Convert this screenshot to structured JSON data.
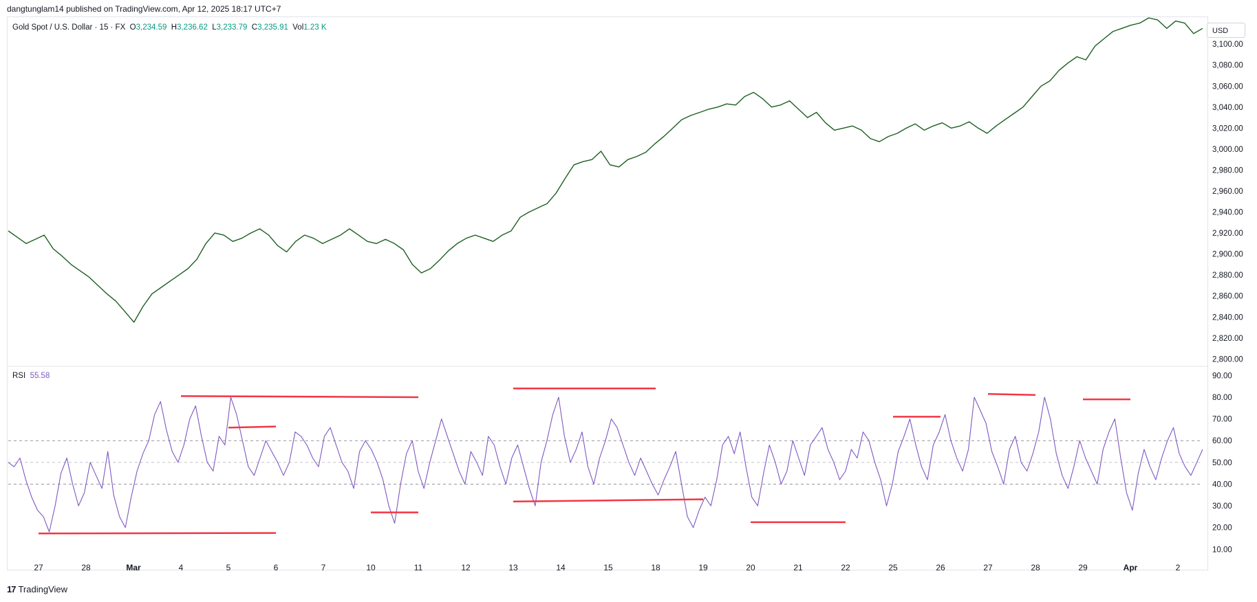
{
  "header": {
    "published": "dangtunglam14 published on TradingView.com, Apr 12, 2025 18:17 UTC+7"
  },
  "legend": {
    "symbol": "Gold Spot / U.S. Dollar · 15 · FX",
    "o_label": "O",
    "o_value": "3,234.59",
    "h_label": "H",
    "h_value": "3,236.62",
    "l_label": "L",
    "l_value": "3,233.79",
    "c_label": "C",
    "c_value": "3,235.91",
    "vol_label": "Vol",
    "vol_value": "1.23 K"
  },
  "currency": "USD",
  "rsi_legend": {
    "label": "RSI",
    "value": "55.58"
  },
  "footer": {
    "brand": "TradingView",
    "logo_glyph": "17"
  },
  "colors": {
    "price_up": "#089981",
    "price_line": "#1b5e20",
    "rsi_line": "#7e57c2",
    "annotation": "#f23645",
    "grid_dash": "#787b86"
  },
  "chart_data": [
    {
      "type": "line",
      "title": "Gold Spot / U.S. Dollar · 15 · FX",
      "y_ticks": [
        2800,
        2820,
        2840,
        2860,
        2880,
        2900,
        2920,
        2940,
        2960,
        2980,
        3000,
        3020,
        3040,
        3060,
        3080,
        3100
      ],
      "y_tick_labels": [
        "2,800.00",
        "2,820.00",
        "2,840.00",
        "2,860.00",
        "2,880.00",
        "2,900.00",
        "2,920.00",
        "2,940.00",
        "2,960.00",
        "2,980.00",
        "3,000.00",
        "3,020.00",
        "3,040.00",
        "3,060.00",
        "3,080.00",
        "3,100.00"
      ],
      "ylim": [
        2795,
        3125
      ],
      "x_tick_labels": [
        "27",
        "28",
        "Mar",
        "4",
        "5",
        "6",
        "7",
        "10",
        "11",
        "12",
        "13",
        "14",
        "15",
        "18",
        "19",
        "20",
        "21",
        "22",
        "25",
        "26",
        "27",
        "28",
        "29",
        "Apr",
        "2"
      ],
      "series": [
        {
          "values": [
            2922,
            2916,
            2910,
            2914,
            2918,
            2905,
            2898,
            2890,
            2884,
            2878,
            2870,
            2862,
            2855,
            2845,
            2835,
            2850,
            2862,
            2868,
            2874,
            2880,
            2886,
            2895,
            2910,
            2920,
            2918,
            2912,
            2915,
            2920,
            2924,
            2918,
            2908,
            2902,
            2912,
            2918,
            2915,
            2910,
            2914,
            2918,
            2924,
            2918,
            2912,
            2910,
            2914,
            2910,
            2904,
            2890,
            2882,
            2886,
            2894,
            2903,
            2910,
            2915,
            2918,
            2915,
            2912,
            2918,
            2922,
            2935,
            2940,
            2944,
            2948,
            2958,
            2972,
            2985,
            2988,
            2990,
            2998,
            2985,
            2983,
            2990,
            2993,
            2997,
            3005,
            3012,
            3020,
            3028,
            3032,
            3035,
            3038,
            3040,
            3043,
            3042,
            3050,
            3054,
            3048,
            3040,
            3042,
            3046,
            3038,
            3030,
            3035,
            3025,
            3018,
            3020,
            3022,
            3018,
            3010,
            3007,
            3012,
            3015,
            3020,
            3024,
            3018,
            3022,
            3025,
            3020,
            3022,
            3026,
            3020,
            3015,
            3022,
            3028,
            3034,
            3040,
            3050,
            3060,
            3065,
            3075,
            3082,
            3088,
            3085,
            3098,
            3105,
            3112,
            3115,
            3118,
            3120,
            3125,
            3123,
            3115,
            3122,
            3120,
            3110,
            3115
          ]
        }
      ]
    },
    {
      "type": "line",
      "title": "RSI",
      "y_ticks": [
        10,
        20,
        30,
        40,
        50,
        60,
        70,
        80,
        90
      ],
      "y_tick_labels": [
        "10.00",
        "20.00",
        "30.00",
        "40.00",
        "50.00",
        "60.00",
        "70.00",
        "80.00",
        "90.00"
      ],
      "ylim": [
        6,
        92
      ],
      "bands": [
        40,
        50,
        60
      ],
      "series": [
        {
          "name": "RSI",
          "values": [
            50,
            48,
            52,
            42,
            34,
            28,
            25,
            18,
            30,
            45,
            52,
            40,
            30,
            36,
            50,
            44,
            38,
            55,
            35,
            25,
            20,
            34,
            46,
            54,
            60,
            72,
            78,
            65,
            55,
            50,
            58,
            70,
            76,
            62,
            50,
            46,
            62,
            58,
            80,
            72,
            60,
            48,
            44,
            52,
            60,
            55,
            50,
            44,
            50,
            64,
            62,
            58,
            52,
            48,
            62,
            66,
            58,
            50,
            46,
            38,
            55,
            60,
            56,
            50,
            42,
            30,
            22,
            40,
            54,
            60,
            46,
            38,
            50,
            60,
            70,
            62,
            54,
            46,
            40,
            55,
            50,
            44,
            62,
            58,
            48,
            40,
            52,
            58,
            48,
            38,
            30,
            50,
            60,
            72,
            80,
            62,
            50,
            56,
            64,
            48,
            40,
            52,
            60,
            70,
            66,
            58,
            50,
            44,
            52,
            46,
            40,
            35,
            42,
            48,
            55,
            40,
            25,
            20,
            28,
            34,
            30,
            42,
            58,
            62,
            54,
            64,
            48,
            34,
            30,
            45,
            58,
            50,
            40,
            46,
            60,
            52,
            44,
            58,
            62,
            66,
            56,
            50,
            42,
            46,
            56,
            52,
            64,
            60,
            50,
            42,
            30,
            40,
            55,
            62,
            70,
            58,
            48,
            42,
            58,
            64,
            72,
            60,
            52,
            46,
            56,
            80,
            74,
            68,
            55,
            48,
            40,
            56,
            62,
            50,
            46,
            54,
            64,
            80,
            70,
            54,
            44,
            38,
            48,
            60,
            52,
            46,
            40,
            56,
            64,
            70,
            52,
            36,
            28,
            45,
            56,
            48,
            42,
            52,
            60,
            66,
            54,
            48,
            44,
            50,
            56
          ]
        }
      ],
      "annotations": [
        {
          "from": {
            "x": "4",
            "y": 80.5
          },
          "to": {
            "x": "11",
            "y": 80
          }
        },
        {
          "from": {
            "x": "5",
            "y": 66
          },
          "to": {
            "x": "6",
            "y": 66.5
          }
        },
        {
          "from": {
            "x": "27",
            "y": 17.3
          },
          "to": {
            "x": "6",
            "y": 17.5
          }
        },
        {
          "from": {
            "x": "10",
            "y": 27
          },
          "to": {
            "x": "11",
            "y": 27
          }
        },
        {
          "from": {
            "x": "13",
            "y": 84
          },
          "to": {
            "x": "18",
            "y": 84
          }
        },
        {
          "from": {
            "x": "13",
            "y": 32
          },
          "to": {
            "x": "19",
            "y": 33
          }
        },
        {
          "from": {
            "x": "20",
            "y": 22.5
          },
          "to": {
            "x": "22",
            "y": 22.5
          }
        },
        {
          "from": {
            "x": "25",
            "y": 71
          },
          "to": {
            "x": "26",
            "y": 71
          }
        },
        {
          "from": {
            "x": "27",
            "y": 81.5
          },
          "to": {
            "x": "28",
            "y": 81
          }
        },
        {
          "from": {
            "x": "29",
            "y": 79
          },
          "to": {
            "x": "Apr",
            "y": 79
          }
        }
      ]
    }
  ]
}
